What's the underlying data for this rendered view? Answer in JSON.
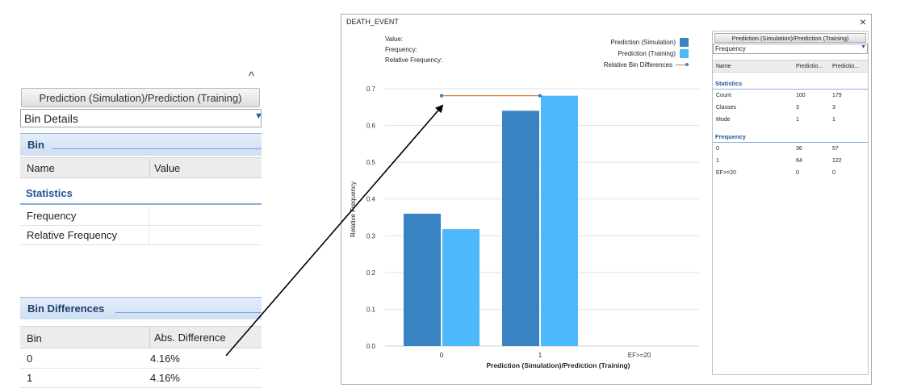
{
  "left_panel": {
    "caret": "^",
    "button_label": "Prediction (Simulation)/Prediction (Training)",
    "select_value": "Bin Details",
    "bin_header": "Bin",
    "columns": {
      "name": "Name",
      "value": "Value"
    },
    "statistics_label": "Statistics",
    "stat_rows": [
      "Frequency",
      "Relative Frequency"
    ],
    "bin_diff_header": "Bin Differences",
    "diff_columns": {
      "bin": "Bin",
      "abs": "Abs. Difference"
    },
    "diff_rows": [
      {
        "bin": "0",
        "abs": "4.16%"
      },
      {
        "bin": "1",
        "abs": "4.16%"
      }
    ]
  },
  "window": {
    "title": "DEATH_EVENT",
    "close": "×",
    "info": {
      "value": "Value:",
      "frequency": "Frequency:",
      "relative": "Relative Frequency:"
    },
    "legend": {
      "sim": "Prediction (Simulation)",
      "train": "Prediction (Training)",
      "diff": "Relative Bin Differences"
    }
  },
  "chart_data": {
    "type": "bar",
    "categories": [
      "0",
      "1",
      "EF>=20"
    ],
    "series": [
      {
        "name": "Prediction (Simulation)",
        "values": [
          0.36,
          0.64,
          0
        ],
        "color": "#3a83c2"
      },
      {
        "name": "Prediction (Training)",
        "values": [
          0.318,
          0.681,
          0
        ],
        "color": "#4db8fb"
      }
    ],
    "relative_bin_difference_line": {
      "name": "Relative Bin Differences",
      "x": [
        "0",
        "1"
      ],
      "y": [
        0.681,
        0.681
      ],
      "color": "#e07a3c"
    },
    "xlabel": "Prediction (Simulation)/Prediction (Training)",
    "ylabel": "Relative Frequency",
    "ylim": [
      0,
      0.75
    ],
    "yticks": [
      "0.0",
      "0.1",
      "0.2",
      "0.3",
      "0.4",
      "0.5",
      "0.6",
      "0.7"
    ],
    "grid": true,
    "legend_position": "top-right"
  },
  "right_panel": {
    "button_label": "Prediction (Simulation)/Prediction (Training)",
    "select_value": "Frequency",
    "columns": [
      "Name",
      "Predictio...",
      "Predictio..."
    ],
    "statistics_label": "Statistics",
    "stats": [
      {
        "name": "Count",
        "a": "100",
        "b": "179"
      },
      {
        "name": "Classes",
        "a": "3",
        "b": "3"
      },
      {
        "name": "Mode",
        "a": "1",
        "b": "1"
      }
    ],
    "frequency_label": "Frequency",
    "freq": [
      {
        "name": "0",
        "a": "36",
        "b": "57"
      },
      {
        "name": "1",
        "a": "64",
        "b": "122"
      },
      {
        "name": "EF>=20",
        "a": "0",
        "b": "0"
      }
    ]
  }
}
